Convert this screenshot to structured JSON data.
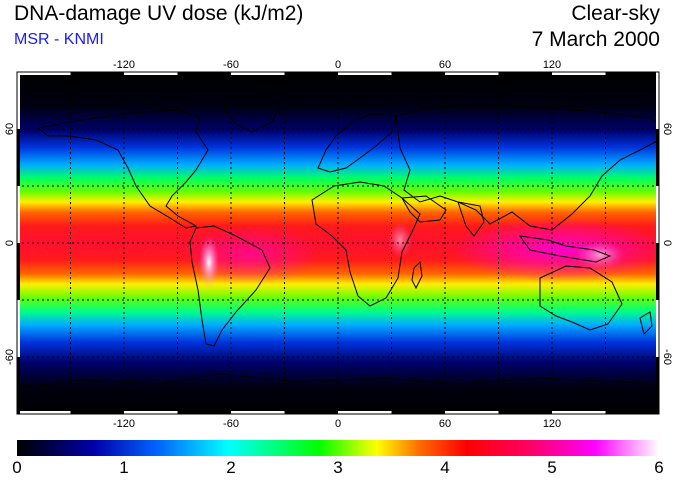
{
  "header": {
    "title": "DNA-damage UV dose (kJ/m2)",
    "source": "MSR - KNMI",
    "condition": "Clear-sky",
    "date": "7 March 2000"
  },
  "map": {
    "projection": "equirectangular",
    "lon_range": [
      -180,
      180
    ],
    "lat_range": [
      -90,
      90
    ],
    "lon_ticks": [
      "-120",
      "-60",
      "0",
      "60",
      "120"
    ],
    "lat_ticks": [
      "60",
      "0",
      "-60"
    ],
    "graticule_lons": [
      -150,
      -120,
      -90,
      -60,
      -30,
      0,
      30,
      60,
      90,
      120,
      150
    ],
    "graticule_lats": [
      -60,
      -30,
      0,
      30,
      60
    ],
    "graticule_style": "dotted"
  },
  "colorbar": {
    "min": 0,
    "max": 6,
    "tick_labels": [
      "0",
      "1",
      "2",
      "3",
      "4",
      "5",
      "6"
    ],
    "colors": [
      "#000000",
      "#0000aa",
      "#0066ff",
      "#00ffff",
      "#00ff00",
      "#ffff00",
      "#ff6600",
      "#ff0000",
      "#ff0066",
      "#ff00ff",
      "#ffffff"
    ]
  }
}
